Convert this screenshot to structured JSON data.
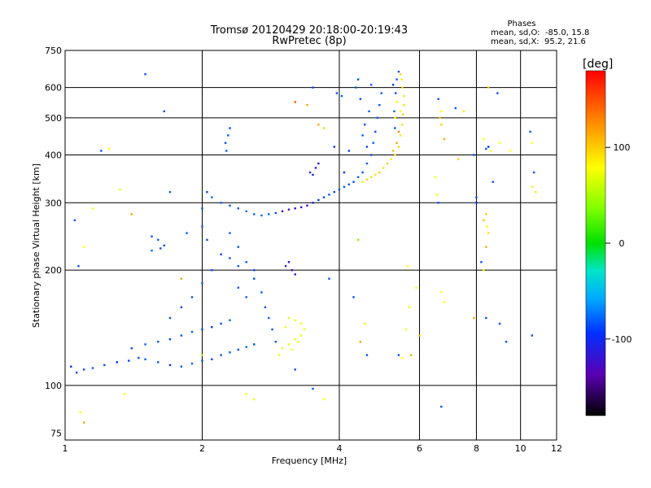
{
  "chart_data": {
    "type": "scatter",
    "title": "Tromsø 20120429 20:18:00-20:19:43",
    "subtitle": "RwPretec (8p)",
    "xlabel": "Frequency [MHz]",
    "ylabel": "Stationary phase Virtual Height [km]",
    "xscale": "log",
    "yscale": "log",
    "xlim": [
      1,
      12
    ],
    "ylim": [
      72,
      750
    ],
    "x_ticks": [
      1,
      2,
      4,
      6,
      8,
      10,
      12
    ],
    "y_ticks": [
      75,
      100,
      200,
      300,
      400,
      500,
      600,
      750
    ],
    "grid": true,
    "info": {
      "heading": "Phases",
      "line1": "mean, sd,O:  -85.0, 15.8",
      "line2": "mean, sd,X:  95.2, 21.6"
    },
    "colorbar": {
      "label": "[deg]",
      "range": [
        -180,
        180
      ],
      "ticks": [
        100,
        0,
        -100
      ],
      "placement": "right"
    },
    "series": [
      {
        "points": [
          [
            1.03,
            112,
            -110
          ],
          [
            1.06,
            108,
            -105
          ],
          [
            1.1,
            110,
            -100
          ],
          [
            1.15,
            111,
            -95
          ],
          [
            1.22,
            113,
            -100
          ],
          [
            1.3,
            115,
            -110
          ],
          [
            1.38,
            116,
            -105
          ],
          [
            1.45,
            118,
            -100
          ],
          [
            1.5,
            117,
            -95
          ],
          [
            1.6,
            115,
            -100
          ],
          [
            1.7,
            113,
            -110
          ],
          [
            1.8,
            112,
            -100
          ],
          [
            1.9,
            114,
            -95
          ],
          [
            2.0,
            116,
            -100
          ],
          [
            2.1,
            117,
            -105
          ],
          [
            1.4,
            125,
            -100
          ],
          [
            1.5,
            128,
            -95
          ],
          [
            1.6,
            130,
            -100
          ],
          [
            1.7,
            132,
            -105
          ],
          [
            1.8,
            135,
            -100
          ],
          [
            1.9,
            138,
            -95
          ],
          [
            2.0,
            140,
            -100
          ],
          [
            2.1,
            142,
            -110
          ],
          [
            2.2,
            145,
            -100
          ],
          [
            2.3,
            148,
            -95
          ],
          [
            1.7,
            150,
            -100
          ],
          [
            1.8,
            160,
            -105
          ],
          [
            1.9,
            170,
            -100
          ],
          [
            2.0,
            185,
            -95
          ],
          [
            2.1,
            200,
            -100
          ],
          [
            2.2,
            220,
            -105
          ],
          [
            2.05,
            240,
            -100
          ],
          [
            2.0,
            260,
            -95
          ],
          [
            2.0,
            290,
            -100
          ],
          [
            2.05,
            320,
            -105
          ],
          [
            2.1,
            310,
            -90
          ],
          [
            2.2,
            300,
            -95
          ],
          [
            2.3,
            295,
            -100
          ],
          [
            2.4,
            290,
            -95
          ],
          [
            2.5,
            285,
            -90
          ],
          [
            2.6,
            280,
            -95
          ],
          [
            2.7,
            278,
            -90
          ],
          [
            2.8,
            280,
            -95
          ],
          [
            2.9,
            282,
            -100
          ],
          [
            1.55,
            245,
            -100
          ],
          [
            1.6,
            240,
            -95
          ],
          [
            1.65,
            232,
            -100
          ],
          [
            1.55,
            225,
            -95
          ],
          [
            1.62,
            228,
            -100
          ],
          [
            2.3,
            250,
            -95
          ],
          [
            2.4,
            230,
            -100
          ],
          [
            2.5,
            210,
            -95
          ],
          [
            2.6,
            190,
            -100
          ],
          [
            2.7,
            175,
            -95
          ],
          [
            2.75,
            160,
            -100
          ],
          [
            2.8,
            150,
            -95
          ],
          [
            2.85,
            140,
            -100
          ],
          [
            2.9,
            130,
            -95
          ],
          [
            2.2,
            120,
            -100
          ],
          [
            2.3,
            122,
            -95
          ],
          [
            2.4,
            124,
            -100
          ],
          [
            2.5,
            126,
            -95
          ],
          [
            2.6,
            128,
            -100
          ],
          [
            2.4,
            180,
            -100
          ],
          [
            2.5,
            170,
            -95
          ],
          [
            2.6,
            200,
            -100
          ],
          [
            2.4,
            205,
            -95
          ],
          [
            2.3,
            215,
            -100
          ],
          [
            2.25,
            430,
            -100
          ],
          [
            2.28,
            450,
            -95
          ],
          [
            2.3,
            470,
            -100
          ],
          [
            2.26,
            410,
            -95
          ],
          [
            3.0,
            285,
            -130
          ],
          [
            3.1,
            288,
            -135
          ],
          [
            3.2,
            290,
            -130
          ],
          [
            3.3,
            292,
            -125
          ],
          [
            3.4,
            295,
            -130
          ],
          [
            3.5,
            300,
            -120
          ],
          [
            3.6,
            305,
            -110
          ],
          [
            3.7,
            310,
            -105
          ],
          [
            3.8,
            315,
            -100
          ],
          [
            3.9,
            320,
            -105
          ],
          [
            4.0,
            325,
            -100
          ],
          [
            4.1,
            330,
            -95
          ],
          [
            4.2,
            335,
            -100
          ],
          [
            3.5,
            355,
            -120
          ],
          [
            3.55,
            370,
            -130
          ],
          [
            3.6,
            380,
            -125
          ],
          [
            3.45,
            360,
            -110
          ],
          [
            3.1,
            210,
            -130
          ],
          [
            3.15,
            200,
            -135
          ],
          [
            3.2,
            195,
            -130
          ],
          [
            3.05,
            205,
            -120
          ],
          [
            3.0,
            125,
            85
          ],
          [
            3.1,
            128,
            90
          ],
          [
            3.2,
            132,
            95
          ],
          [
            3.3,
            135,
            88
          ],
          [
            3.35,
            140,
            92
          ],
          [
            3.3,
            145,
            95
          ],
          [
            3.2,
            148,
            90
          ],
          [
            3.1,
            150,
            85
          ],
          [
            3.05,
            142,
            95
          ],
          [
            2.95,
            120,
            90
          ],
          [
            3.15,
            124,
            100
          ],
          [
            3.25,
            130,
            85
          ],
          [
            4.3,
            340,
            -100
          ],
          [
            4.4,
            350,
            -95
          ],
          [
            4.5,
            360,
            -100
          ],
          [
            4.6,
            380,
            -95
          ],
          [
            4.7,
            400,
            -100
          ],
          [
            4.75,
            430,
            -95
          ],
          [
            4.8,
            460,
            -100
          ],
          [
            4.85,
            500,
            -95
          ],
          [
            4.9,
            540,
            -100
          ],
          [
            4.95,
            580,
            -95
          ],
          [
            4.6,
            420,
            -100
          ],
          [
            4.5,
            450,
            -95
          ],
          [
            4.55,
            480,
            -100
          ],
          [
            4.65,
            520,
            -95
          ],
          [
            4.45,
            560,
            -100
          ],
          [
            4.35,
            600,
            -95
          ],
          [
            4.4,
            630,
            -100
          ],
          [
            4.7,
            610,
            -95
          ],
          [
            4.2,
            410,
            -105
          ],
          [
            4.1,
            360,
            -110
          ],
          [
            3.95,
            580,
            -100
          ],
          [
            4.05,
            570,
            -95
          ],
          [
            3.5,
            600,
            -100
          ],
          [
            4.5,
            340,
            110
          ],
          [
            4.6,
            345,
            120
          ],
          [
            4.7,
            350,
            115
          ],
          [
            4.8,
            355,
            110
          ],
          [
            4.9,
            360,
            120
          ],
          [
            5.0,
            370,
            115
          ],
          [
            5.1,
            380,
            120
          ],
          [
            5.2,
            390,
            110
          ],
          [
            5.3,
            400,
            115
          ],
          [
            5.4,
            420,
            120
          ],
          [
            5.45,
            450,
            110
          ],
          [
            5.5,
            480,
            115
          ],
          [
            5.52,
            510,
            120
          ],
          [
            5.55,
            540,
            110
          ],
          [
            5.55,
            570,
            115
          ],
          [
            5.5,
            600,
            120
          ],
          [
            5.48,
            630,
            110
          ],
          [
            5.45,
            650,
            115
          ],
          [
            5.35,
            430,
            140
          ],
          [
            5.4,
            460,
            150
          ],
          [
            5.25,
            410,
            130
          ],
          [
            5.45,
            520,
            100
          ],
          [
            5.3,
            500,
            105
          ],
          [
            5.35,
            550,
            95
          ],
          [
            5.3,
            470,
            -100
          ],
          [
            5.28,
            520,
            -95
          ],
          [
            5.32,
            580,
            -100
          ],
          [
            5.35,
            630,
            -95
          ],
          [
            5.4,
            660,
            -100
          ],
          [
            5.25,
            610,
            -105
          ],
          [
            1.1,
            230,
            100
          ],
          [
            1.15,
            290,
            95
          ],
          [
            1.2,
            410,
            -100
          ],
          [
            1.25,
            415,
            100
          ],
          [
            1.32,
            325,
            90
          ],
          [
            1.4,
            280,
            140
          ],
          [
            1.5,
            650,
            -100
          ],
          [
            1.65,
            520,
            -100
          ],
          [
            1.7,
            320,
            -100
          ],
          [
            1.85,
            250,
            -95
          ],
          [
            1.8,
            190,
            140
          ],
          [
            2.0,
            120,
            60
          ],
          [
            2.5,
            95,
            100
          ],
          [
            2.6,
            92,
            90
          ],
          [
            1.35,
            95,
            100
          ],
          [
            1.1,
            80,
            140
          ],
          [
            1.08,
            85,
            90
          ],
          [
            1.05,
            270,
            -100
          ],
          [
            1.07,
            205,
            -100
          ],
          [
            3.2,
            110,
            -100
          ],
          [
            3.5,
            98,
            -100
          ],
          [
            3.7,
            92,
            100
          ],
          [
            3.8,
            190,
            -100
          ],
          [
            3.2,
            550,
            160
          ],
          [
            3.4,
            540,
            140
          ],
          [
            3.6,
            480,
            140
          ],
          [
            3.7,
            470,
            120
          ],
          [
            3.9,
            420,
            -110
          ],
          [
            4.3,
            170,
            -100
          ],
          [
            4.4,
            240,
            40
          ],
          [
            4.45,
            130,
            140
          ],
          [
            4.55,
            145,
            90
          ],
          [
            4.6,
            120,
            -100
          ],
          [
            5.4,
            120,
            -100
          ],
          [
            5.5,
            118,
            100
          ],
          [
            5.6,
            140,
            90
          ],
          [
            5.65,
            205,
            100
          ],
          [
            5.7,
            160,
            90
          ],
          [
            5.75,
            120,
            140
          ],
          [
            5.9,
            180,
            100
          ],
          [
            6.0,
            135,
            130
          ],
          [
            6.5,
            350,
            90
          ],
          [
            6.55,
            315,
            100
          ],
          [
            6.6,
            300,
            -100
          ],
          [
            6.7,
            175,
            100
          ],
          [
            6.8,
            165,
            100
          ],
          [
            6.6,
            560,
            -100
          ],
          [
            6.7,
            520,
            100
          ],
          [
            6.65,
            500,
            130
          ],
          [
            6.7,
            480,
            120
          ],
          [
            6.8,
            440,
            140
          ],
          [
            6.7,
            88,
            -100
          ],
          [
            7.2,
            530,
            -100
          ],
          [
            7.3,
            390,
            120
          ],
          [
            7.5,
            520,
            110
          ],
          [
            7.9,
            400,
            -100
          ],
          [
            8.0,
            310,
            -100
          ],
          [
            8.0,
            300,
            -110
          ],
          [
            7.9,
            150,
            140
          ],
          [
            8.3,
            440,
            100
          ],
          [
            8.4,
            415,
            -100
          ],
          [
            8.5,
            420,
            -110
          ],
          [
            8.6,
            410,
            100
          ],
          [
            8.4,
            280,
            120
          ],
          [
            8.45,
            260,
            100
          ],
          [
            8.5,
            250,
            110
          ],
          [
            8.3,
            270,
            130
          ],
          [
            8.4,
            230,
            140
          ],
          [
            8.2,
            210,
            -100
          ],
          [
            8.3,
            200,
            110
          ],
          [
            8.4,
            150,
            -100
          ],
          [
            8.5,
            600,
            130
          ],
          [
            8.7,
            340,
            -100
          ],
          [
            8.9,
            580,
            -100
          ],
          [
            9.0,
            430,
            100
          ],
          [
            9.0,
            145,
            -100
          ],
          [
            9.3,
            130,
            -100
          ],
          [
            9.5,
            410,
            100
          ],
          [
            10.5,
            460,
            -100
          ],
          [
            10.6,
            430,
            100
          ],
          [
            10.7,
            360,
            -100
          ],
          [
            10.6,
            330,
            90
          ],
          [
            10.8,
            320,
            110
          ],
          [
            10.6,
            135,
            -100
          ]
        ]
      }
    ]
  }
}
